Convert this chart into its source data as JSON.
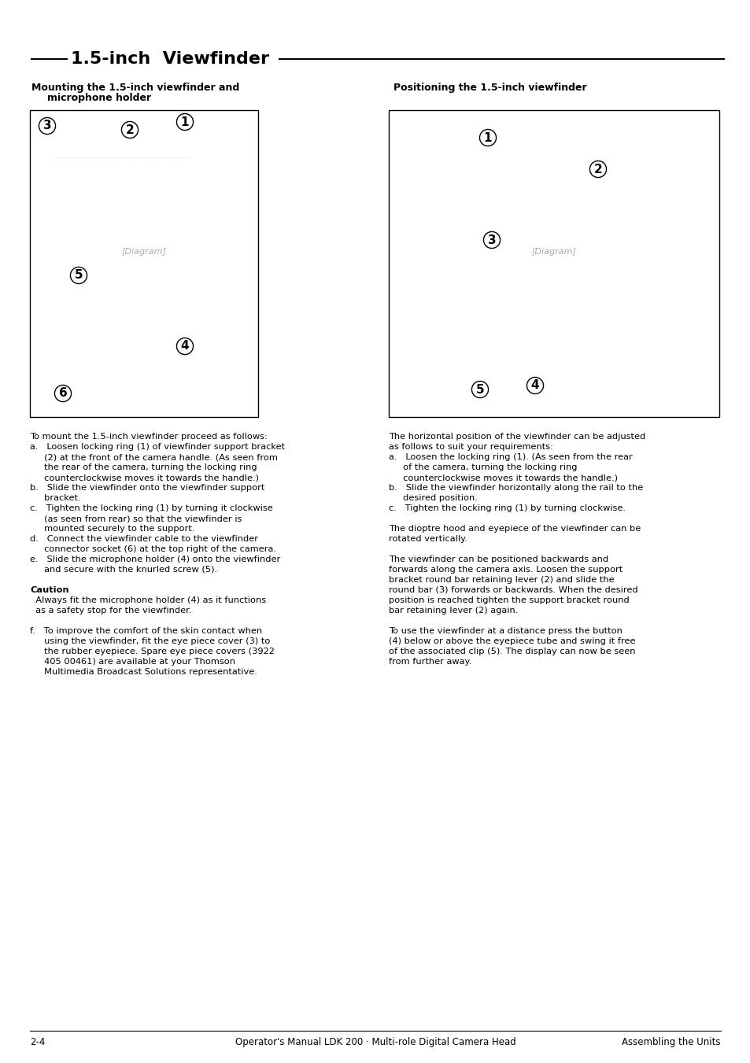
{
  "page_title": "1.5-inch  Viewfinder",
  "bg_color": "#ffffff",
  "text_color": "#000000",
  "left_header": "Mounting the 1.5-inch viewfinder and\n    microphone holder",
  "right_header": "Positioning the 1.5-inch viewfinder",
  "left_body": [
    "To mount the 1.5-inch viewfinder proceed as follows:",
    "a.  Loosen locking ring (1) of viewfinder support bracket\n    (2) at the front of the camera handle. (As seen from\n    the rear of the camera, turning the locking ring\n    counterclockwise moves it towards the handle.)",
    "b.  Slide the viewfinder onto the viewfinder support\n    bracket.",
    "c.  Tighten the locking ring (1) by turning it clockwise\n    (as seen from rear) so that the viewfinder is\n    mounted securely to the support.",
    "d.  Connect the viewfinder cable to the viewfinder\n    connector socket (6) at the top right of the camera.",
    "e.  Slide the microphone holder (4) onto the viewfinder\n    and secure with the knurled screw (5).",
    "Caution",
    "Always fit the microphone holder (4) as it functions\n    as a safety stop for the viewfinder.",
    "f.  To improve the comfort of the skin contact when\n    using the viewfinder, fit the eye piece cover (3) to\n    the rubber eyepiece. Spare eye piece covers (3922\n    405 00461) are available at your Thomson\n    Multimedia Broadcast Solutions representative."
  ],
  "right_body": [
    "The horizontal position of the viewfinder can be adjusted\nas follows to suit your requirements:",
    "a.  Loosen the locking ring (1). (As seen from the rear\n    of the camera, turning the locking ring\n    counterclockwise moves it towards the handle.)",
    "b.  Slide the viewfinder horizontally along the rail to the\n    desired position.",
    "c.  Tighten the locking ring (1) by turning clockwise.",
    "The dioptre hood and eyepiece of the viewfinder can be\nrotated vertically.",
    "The viewfinder can be positioned backwards and\nforwards along the camera axis. Loosen the support\nbracket round bar retaining lever (2) and slide the\nround bar (3) forwards or backwards. When the desired\nposition is reached tighten the support bracket round\nbar retaining lever (2) again.",
    "To use the viewfinder at a distance press the button\n(4) below or above the eyepiece tube and swing it free\nof the associated clip (5). The display can now be seen\nfrom further away."
  ],
  "footer_left": "2-4",
  "footer_center": "Operator's Manual LDK 200 · Multi-role Digital Camera Head",
  "footer_right": "Assembling the Units"
}
